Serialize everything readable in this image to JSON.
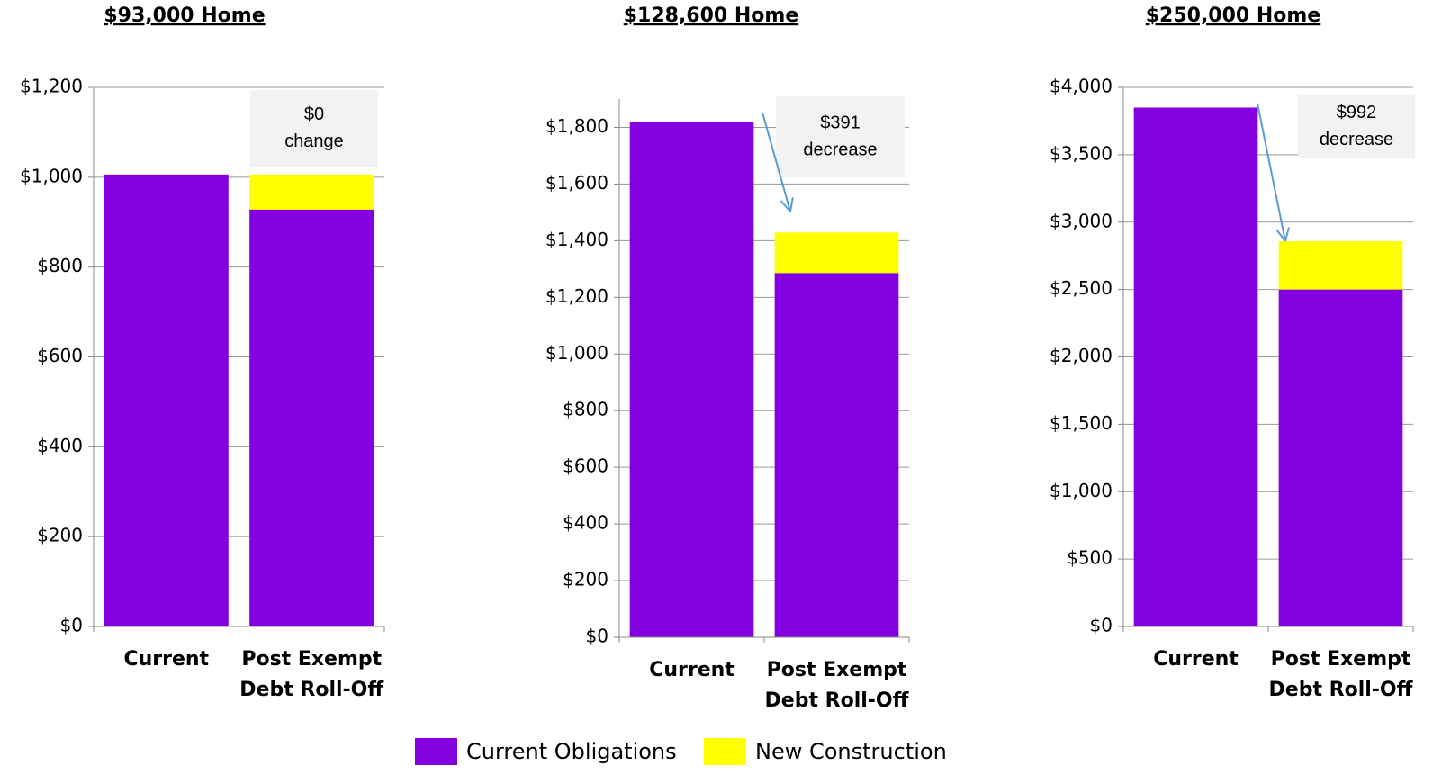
{
  "chart_data": [
    {
      "type": "bar",
      "stacked": true,
      "title": "$93,000 Home",
      "categories": [
        "Current",
        "Post Exempt Debt Roll-Off"
      ],
      "series": [
        {
          "name": "Current Obligations",
          "color": "#8400e0",
          "values": [
            1006,
            928
          ]
        },
        {
          "name": "New Construction",
          "color": "#ffff00",
          "values": [
            null,
            78
          ]
        }
      ],
      "ylim": [
        0,
        1200
      ],
      "yticks": [
        {
          "value": 0,
          "label": "$0"
        },
        {
          "value": 200,
          "label": "$200"
        },
        {
          "value": 400,
          "label": "$400"
        },
        {
          "value": 600,
          "label": "$600"
        },
        {
          "value": 800,
          "label": "$800"
        },
        {
          "value": 1000,
          "label": "$1,000"
        },
        {
          "value": 1200,
          "label": "$1,200"
        }
      ],
      "grid": true,
      "annotation": [
        "$0",
        "change"
      ]
    },
    {
      "type": "bar",
      "stacked": true,
      "title": "$128,600 Home",
      "categories": [
        "Current",
        "Post Exempt Debt Roll-Off"
      ],
      "series": [
        {
          "name": "Current Obligations",
          "color": "#8400e0",
          "values": [
            1820,
            1286
          ]
        },
        {
          "name": "New Construction",
          "color": "#ffff00",
          "values": [
            null,
            143
          ]
        }
      ],
      "ylim": [
        0,
        1900
      ],
      "yticks": [
        {
          "value": 0,
          "label": "$0"
        },
        {
          "value": 200,
          "label": "$200"
        },
        {
          "value": 400,
          "label": "$400"
        },
        {
          "value": 600,
          "label": "$600"
        },
        {
          "value": 800,
          "label": "$800"
        },
        {
          "value": 1000,
          "label": "$1,000"
        },
        {
          "value": 1200,
          "label": "$1,200"
        },
        {
          "value": 1400,
          "label": "$1,400"
        },
        {
          "value": 1600,
          "label": "$1,600"
        },
        {
          "value": 1800,
          "label": "$1,800"
        }
      ],
      "grid": true,
      "annotation": [
        "$391",
        "decrease"
      ]
    },
    {
      "type": "bar",
      "stacked": true,
      "title": "$250,000 Home",
      "categories": [
        "Current",
        "Post Exempt Debt Roll-Off"
      ],
      "series": [
        {
          "name": "Current Obligations",
          "color": "#8400e0",
          "values": [
            3850,
            2500
          ]
        },
        {
          "name": "New Construction",
          "color": "#ffff00",
          "values": [
            null,
            358
          ]
        }
      ],
      "ylim": [
        0,
        4000
      ],
      "yticks": [
        {
          "value": 0,
          "label": "$0"
        },
        {
          "value": 500,
          "label": "$500"
        },
        {
          "value": 1000,
          "label": "$1,000"
        },
        {
          "value": 1500,
          "label": "$1,500"
        },
        {
          "value": 2000,
          "label": "$2,000"
        },
        {
          "value": 2500,
          "label": "$2,500"
        },
        {
          "value": 3000,
          "label": "$3,000"
        },
        {
          "value": 3500,
          "label": "$3,500"
        },
        {
          "value": 4000,
          "label": "$4,000"
        }
      ],
      "grid": true,
      "annotation": [
        "$992",
        "decrease"
      ]
    }
  ]
}
